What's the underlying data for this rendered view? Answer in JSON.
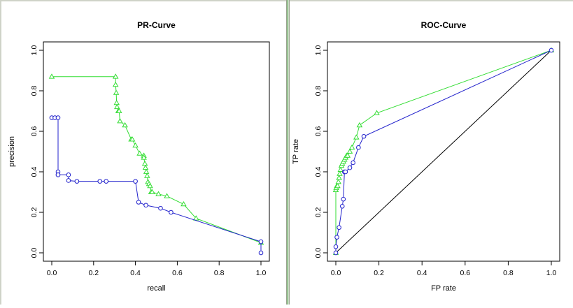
{
  "colors": {
    "series_green": "#33dd33",
    "series_blue": "#2222cc",
    "diagonal": "#000000",
    "frame": "#000000"
  },
  "chart_data": [
    {
      "type": "line",
      "title": "PR-Curve",
      "xlabel": "recall",
      "ylabel": "precision",
      "xlim": [
        0,
        1
      ],
      "ylim": [
        0,
        1
      ],
      "xticks": [
        "0.0",
        "0.2",
        "0.4",
        "0.6",
        "0.8",
        "1.0"
      ],
      "yticks": [
        "0.0",
        "0.2",
        "0.4",
        "0.6",
        "0.8",
        "1.0"
      ],
      "grid": false,
      "series": [
        {
          "marker": "triangle",
          "color": "#33dd33",
          "x": [
            0.0,
            0.305,
            0.305,
            0.308,
            0.31,
            0.312,
            0.318,
            0.322,
            0.326,
            0.35,
            0.38,
            0.385,
            0.4,
            0.42,
            0.44,
            0.44,
            0.445,
            0.448,
            0.452,
            0.456,
            0.46,
            0.465,
            0.47,
            0.475,
            0.48,
            0.51,
            0.55,
            0.63,
            0.69,
            1.0
          ],
          "y": [
            0.87,
            0.87,
            0.83,
            0.79,
            0.74,
            0.72,
            0.7,
            0.7,
            0.65,
            0.63,
            0.56,
            0.56,
            0.53,
            0.49,
            0.48,
            0.47,
            0.44,
            0.42,
            0.4,
            0.38,
            0.35,
            0.34,
            0.33,
            0.3,
            0.3,
            0.29,
            0.28,
            0.24,
            0.17,
            0.05
          ]
        },
        {
          "marker": "circle",
          "color": "#2222cc",
          "x": [
            0.0,
            0.015,
            0.03,
            0.03,
            0.03,
            0.03,
            0.08,
            0.08,
            0.12,
            0.23,
            0.26,
            0.4,
            0.415,
            0.45,
            0.52,
            0.57,
            1.0,
            1.0
          ],
          "y": [
            0.667,
            0.667,
            0.667,
            0.4,
            0.385,
            0.385,
            0.385,
            0.357,
            0.353,
            0.353,
            0.353,
            0.353,
            0.25,
            0.235,
            0.22,
            0.2,
            0.055,
            0.0
          ]
        }
      ]
    },
    {
      "type": "line",
      "title": "ROC-Curve",
      "xlabel": "FP rate",
      "ylabel": "TP rate",
      "xlim": [
        0,
        1
      ],
      "ylim": [
        0,
        1
      ],
      "xticks": [
        "0.0",
        "0.2",
        "0.4",
        "0.6",
        "0.8",
        "1.0"
      ],
      "yticks": [
        "0.0",
        "0.2",
        "0.4",
        "0.6",
        "0.8",
        "1.0"
      ],
      "grid": false,
      "diagonal": true,
      "series": [
        {
          "marker": "triangle",
          "color": "#33dd33",
          "x": [
            0.0,
            0.0,
            0.002,
            0.005,
            0.008,
            0.012,
            0.015,
            0.018,
            0.022,
            0.026,
            0.03,
            0.035,
            0.04,
            0.045,
            0.05,
            0.055,
            0.065,
            0.075,
            0.095,
            0.11,
            0.19,
            1.0
          ],
          "y": [
            0.0,
            0.31,
            0.32,
            0.33,
            0.33,
            0.35,
            0.37,
            0.39,
            0.41,
            0.43,
            0.44,
            0.45,
            0.46,
            0.47,
            0.48,
            0.48,
            0.5,
            0.52,
            0.57,
            0.63,
            0.69,
            1.0
          ]
        },
        {
          "marker": "circle",
          "color": "#2222cc",
          "x": [
            0.0,
            0.0,
            0.005,
            0.015,
            0.03,
            0.035,
            0.04,
            0.045,
            0.065,
            0.08,
            0.105,
            0.13,
            1.0
          ],
          "y": [
            0.0,
            0.03,
            0.077,
            0.125,
            0.23,
            0.265,
            0.4,
            0.4,
            0.42,
            0.445,
            0.52,
            0.575,
            1.0
          ]
        }
      ]
    }
  ]
}
